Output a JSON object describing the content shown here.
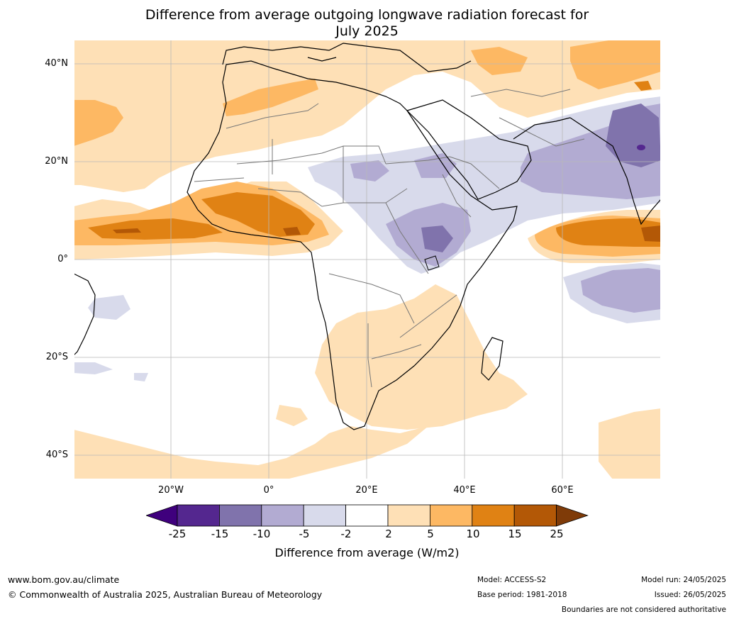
{
  "title_line1": "Difference from average outgoing longwave radiation forecast for",
  "title_line2": "July 2025",
  "lat_labels": [
    "40°N",
    "20°N",
    "0°",
    "20°S",
    "40°S"
  ],
  "lon_labels": [
    "20°W",
    "0°",
    "20°E",
    "40°E",
    "60°E"
  ],
  "colorbar": {
    "title": "Difference from average (W/m2)",
    "ticks": [
      "-25",
      "-15",
      "-10",
      "-5",
      "-2",
      "2",
      "5",
      "10",
      "15",
      "25"
    ],
    "colors": [
      "#3f007d",
      "#54278f",
      "#8073ac",
      "#b2abd2",
      "#d8daeb",
      "#ffffff",
      "#fee0b6",
      "#fdb863",
      "#e08214",
      "#b35806",
      "#7f3b08"
    ]
  },
  "footer": {
    "website": "www.bom.gov.au/climate",
    "copyright": "© Commonwealth of Australia 2025, Australian Bureau of Meteorology",
    "model": "Model: ACCESS-S2",
    "base_period": "Base period: 1981-2018",
    "model_run": "Model run: 24/05/2025",
    "issued": "Issued: 26/05/2025",
    "disclaimer": "Boundaries are not considered authoritative"
  }
}
